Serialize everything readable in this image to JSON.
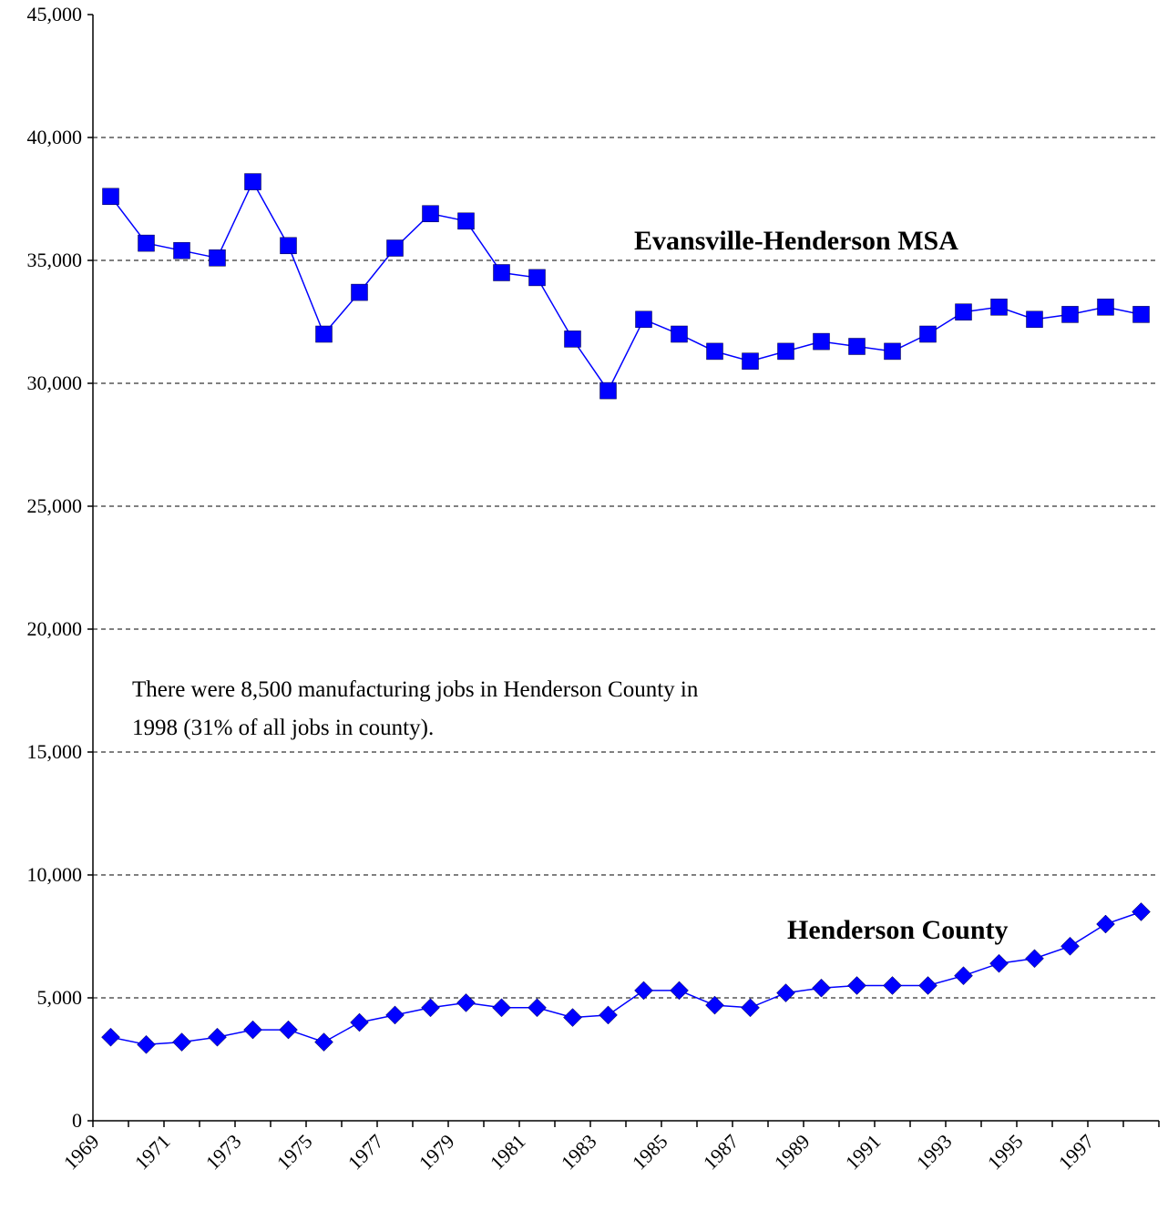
{
  "chart_data": {
    "type": "line",
    "categories": [
      "1969",
      null,
      "1971",
      null,
      "1973",
      null,
      "1975",
      null,
      "1977",
      null,
      "1979",
      null,
      "1981",
      null,
      "1983",
      null,
      "1985",
      null,
      "1987",
      null,
      "1989",
      null,
      "1991",
      null,
      "1993",
      null,
      "1995",
      null,
      "1997",
      null
    ],
    "series": [
      {
        "name": "Evansville-Henderson MSA",
        "color": "#0000ff",
        "marker": "square",
        "values": [
          37600,
          35700,
          35400,
          35100,
          38200,
          35600,
          32000,
          33700,
          35500,
          36900,
          36600,
          34500,
          34300,
          31800,
          29700,
          32600,
          32000,
          31300,
          30900,
          31300,
          31700,
          31500,
          31300,
          32000,
          32900,
          33100,
          32600,
          32800,
          33100,
          32800
        ]
      },
      {
        "name": "Henderson County",
        "color": "#0000ff",
        "marker": "diamond",
        "values": [
          3400,
          3100,
          3200,
          3400,
          3700,
          3700,
          3200,
          4000,
          4300,
          4600,
          4800,
          4600,
          4600,
          4200,
          4300,
          5300,
          5300,
          4700,
          4600,
          5200,
          5400,
          5500,
          5500,
          5500,
          5900,
          6400,
          6600,
          7100,
          8000,
          8500
        ]
      }
    ],
    "annotation": [
      "There were 8,500 manufacturing jobs in Henderson County in",
      "1998 (31% of all jobs in county)."
    ],
    "ylim": [
      0,
      45000
    ],
    "yticks": [
      0,
      {
        "value": 5000,
        "label": "5,000"
      },
      {
        "value": 10000,
        "label": "10,000"
      },
      {
        "value": 15000,
        "label": "15,000"
      },
      {
        "value": 20000,
        "label": "20,000"
      },
      {
        "value": 25000,
        "label": "25,000"
      },
      {
        "value": 30000,
        "label": "30,000"
      },
      {
        "value": 35000,
        "label": "35,000"
      },
      {
        "value": 40000,
        "label": "40,000"
      },
      {
        "value": 45000,
        "label": "45,000"
      }
    ],
    "grid": true
  }
}
